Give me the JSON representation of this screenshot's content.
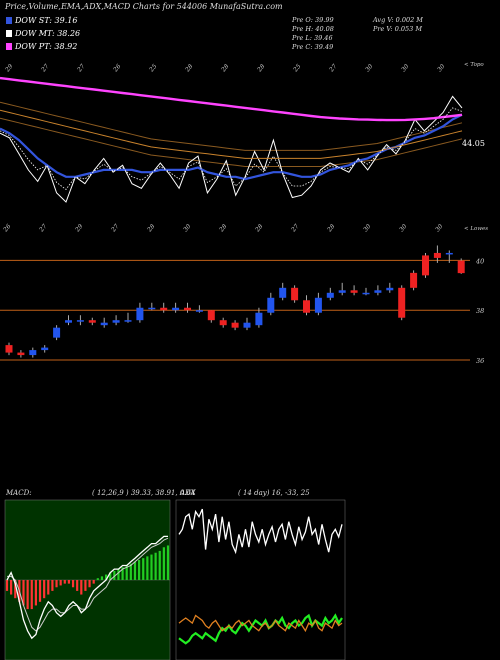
{
  "header": {
    "title": "Price,Volume,EMA,ADX,MACD Charts for 544006  MunafaSutra.com",
    "legend": [
      {
        "label": "DOW ST: 39.16",
        "color": "#3355dd"
      },
      {
        "label": "DOW MT: 38.26",
        "color": "#ffffff"
      },
      {
        "label": "DOW PT: 38.92",
        "color": "#ff44ff"
      }
    ],
    "info_left": [
      "Pre  O: 39.99",
      "Pre  H: 40.08",
      "Pre  L: 39.46",
      "Pre  C: 39.49"
    ],
    "info_right": [
      "Avg V: 0.002  M",
      "Pre  V: 0.053 M"
    ]
  },
  "upper": {
    "price_label": "44.05",
    "top_word": "< Topo",
    "bottom_word": "< Lowes",
    "top_day_labels": [
      "29",
      "27",
      "27",
      "26",
      "25",
      "28",
      "28",
      "28",
      "25",
      "27",
      "30",
      "30",
      "30"
    ],
    "bottom_day_labels": [
      "26",
      "27",
      "29",
      "27",
      "28",
      "30",
      "28",
      "28",
      "27",
      "28",
      "30",
      "30",
      "30"
    ]
  },
  "candle_panel": {
    "levels": [
      "40",
      "38",
      "36"
    ]
  },
  "macd_panel": {
    "label": "MACD:",
    "values": "( 12,26,9 ) 39.33,  38.91,  0.64"
  },
  "adx_panel": {
    "label": "ADX",
    "values": "( 14  day) 16,  -33,  25"
  },
  "chart_data": [
    {
      "type": "line",
      "title": "",
      "x": [
        1,
        2,
        3,
        4,
        5,
        6,
        7,
        8,
        9,
        10,
        11,
        12,
        13,
        14,
        15,
        16,
        17,
        18,
        19,
        20,
        21,
        22,
        23,
        24,
        25,
        26,
        27,
        28,
        29,
        30,
        31,
        32,
        33,
        34,
        35,
        36,
        37,
        38,
        39,
        40,
        41,
        42,
        43,
        44,
        45,
        46,
        47,
        48,
        49,
        50
      ],
      "series": [
        {
          "name": "",
          "color": "#ffffff",
          "values": [
            44.2,
            44.0,
            43.3,
            42.6,
            42.1,
            42.8,
            41.6,
            41.2,
            42.3,
            42.0,
            42.6,
            43.1,
            42.5,
            42.8,
            42.0,
            41.8,
            42.4,
            42.9,
            42.4,
            41.8,
            42.9,
            43.2,
            41.6,
            42.2,
            43.0,
            41.5,
            42.3,
            43.4,
            42.6,
            43.9,
            42.4,
            41.4,
            41.5,
            41.9,
            42.6,
            42.9,
            42.7,
            42.5,
            43.1,
            42.6,
            43.2,
            43.7,
            43.3,
            43.9,
            44.8,
            44.3,
            44.7,
            45.1,
            45.8,
            45.3
          ]
        },
        {
          "name": "",
          "color": "#3355dd",
          "values": [
            44.4,
            44.2,
            43.9,
            43.5,
            43.1,
            42.8,
            42.5,
            42.3,
            42.3,
            42.4,
            42.5,
            42.6,
            42.6,
            42.6,
            42.6,
            42.5,
            42.5,
            42.6,
            42.6,
            42.6,
            42.6,
            42.7,
            42.5,
            42.4,
            42.3,
            42.3,
            42.2,
            42.3,
            42.4,
            42.5,
            42.5,
            42.4,
            42.3,
            42.3,
            42.4,
            42.6,
            42.7,
            42.8,
            43.0,
            43.1,
            43.3,
            43.5,
            43.6,
            43.8,
            44.0,
            44.1,
            44.3,
            44.5,
            44.8,
            45.0
          ]
        },
        {
          "name": "",
          "color": "#ff44ff",
          "values": [
            46.6,
            46.55,
            46.5,
            46.45,
            46.4,
            46.35,
            46.3,
            46.25,
            46.2,
            46.15,
            46.1,
            46.05,
            46.0,
            45.95,
            45.9,
            45.85,
            45.8,
            45.75,
            45.7,
            45.65,
            45.6,
            45.55,
            45.5,
            45.45,
            45.4,
            45.35,
            45.3,
            45.25,
            45.2,
            45.15,
            45.1,
            45.05,
            45.0,
            44.95,
            44.9,
            44.87,
            44.84,
            44.82,
            44.8,
            44.79,
            44.78,
            44.77,
            44.77,
            44.78,
            44.8,
            44.82,
            44.85,
            44.9,
            44.95,
            45.0
          ]
        },
        {
          "name": "",
          "color": "#c8822c",
          "values": [
            45.2,
            45.1,
            45.0,
            44.9,
            44.8,
            44.7,
            44.6,
            44.5,
            44.4,
            44.3,
            44.2,
            44.1,
            44.0,
            43.9,
            43.8,
            43.7,
            43.6,
            43.55,
            43.5,
            43.45,
            43.4,
            43.35,
            43.3,
            43.25,
            43.2,
            43.15,
            43.1,
            43.1,
            43.1,
            43.1,
            43.1,
            43.1,
            43.1,
            43.1,
            43.1,
            43.15,
            43.2,
            43.25,
            43.3,
            43.35,
            43.4,
            43.5,
            43.6,
            43.7,
            43.8,
            43.9,
            44.0,
            44.1,
            44.2,
            44.3
          ]
        }
      ]
    },
    {
      "type": "bar",
      "title": "",
      "open": [
        36.6,
        36.3,
        36.2,
        36.4,
        36.9,
        37.5,
        37.6,
        37.6,
        37.4,
        37.5,
        37.6,
        37.6,
        38.1,
        38.1,
        38.0,
        38.1,
        38.0,
        38.0,
        37.6,
        37.5,
        37.3,
        37.4,
        37.9,
        38.5,
        38.9,
        38.4,
        37.9,
        38.5,
        38.7,
        38.8,
        38.7,
        38.7,
        38.8,
        38.9,
        39.5,
        40.2,
        40.3,
        40.3,
        39.99
      ],
      "close": [
        36.3,
        36.2,
        36.4,
        36.5,
        37.3,
        37.6,
        37.6,
        37.5,
        37.5,
        37.6,
        37.6,
        38.1,
        38.1,
        38.0,
        38.1,
        38.0,
        38.0,
        37.6,
        37.4,
        37.3,
        37.5,
        37.9,
        38.5,
        38.9,
        38.4,
        37.9,
        38.5,
        38.7,
        38.8,
        38.7,
        38.7,
        38.8,
        38.9,
        37.7,
        38.9,
        39.4,
        40.1,
        40.3,
        39.49
      ],
      "high": [
        36.7,
        36.4,
        36.5,
        36.6,
        37.4,
        37.8,
        37.8,
        37.7,
        37.7,
        37.8,
        37.9,
        38.3,
        38.3,
        38.3,
        38.3,
        38.3,
        38.2,
        38.0,
        37.7,
        37.6,
        37.7,
        38.1,
        38.7,
        39.1,
        39.0,
        38.6,
        38.7,
        38.9,
        39.1,
        39.0,
        38.9,
        39.0,
        39.1,
        39.0,
        39.6,
        40.3,
        40.6,
        40.4,
        40.08
      ],
      "low": [
        36.2,
        36.1,
        36.1,
        36.3,
        36.8,
        37.4,
        37.4,
        37.4,
        37.3,
        37.4,
        37.5,
        37.5,
        38.0,
        37.9,
        37.9,
        37.9,
        37.9,
        37.5,
        37.3,
        37.2,
        37.2,
        37.3,
        37.8,
        38.4,
        38.3,
        37.8,
        37.8,
        38.4,
        38.6,
        38.6,
        38.6,
        38.6,
        38.7,
        37.6,
        38.8,
        39.3,
        39.9,
        39.9,
        39.46
      ]
    },
    {
      "type": "line",
      "title": "",
      "series": [
        {
          "name": "",
          "color": "#ffffff",
          "values": [
            0.0,
            0.2,
            -0.1,
            -0.6,
            -1.1,
            -1.4,
            -1.6,
            -1.5,
            -1.1,
            -0.8,
            -0.6,
            -0.7,
            -0.9,
            -1.0,
            -0.9,
            -0.7,
            -0.6,
            -0.7,
            -0.9,
            -0.8,
            -0.5,
            -0.3,
            -0.2,
            -0.1,
            0.0,
            0.2,
            0.3,
            0.3,
            0.4,
            0.4,
            0.5,
            0.6,
            0.7,
            0.8,
            0.9,
            1.0,
            1.0,
            1.1,
            1.2,
            1.2
          ]
        },
        {
          "name": "",
          "color": "#cccccc",
          "values": [
            0.1,
            0.1,
            0.0,
            -0.3,
            -0.7,
            -1.0,
            -1.3,
            -1.4,
            -1.3,
            -1.1,
            -0.9,
            -0.8,
            -0.8,
            -0.9,
            -0.9,
            -0.8,
            -0.7,
            -0.7,
            -0.8,
            -0.8,
            -0.7,
            -0.5,
            -0.4,
            -0.3,
            -0.2,
            0.0,
            0.1,
            0.2,
            0.3,
            0.35,
            0.4,
            0.5,
            0.6,
            0.7,
            0.8,
            0.9,
            0.95,
            1.0,
            1.1,
            1.15
          ]
        },
        {
          "name": "",
          "color": "#ff3333",
          "values": [
            -0.3,
            -0.4,
            -0.5,
            -0.6,
            -0.7,
            -0.8,
            -0.8,
            -0.7,
            -0.6,
            -0.5,
            -0.4,
            -0.3,
            -0.2,
            -0.15,
            -0.1,
            -0.1,
            -0.2,
            -0.3,
            -0.4,
            -0.3,
            -0.2,
            -0.1,
            0.05,
            0.1,
            0.15,
            0.2,
            0.25,
            0.3,
            0.35,
            0.4,
            0.45,
            0.5,
            0.55,
            0.6,
            0.65,
            0.7,
            0.75,
            0.8,
            0.9,
            0.95
          ]
        }
      ]
    },
    {
      "type": "line",
      "title": "",
      "ylim": [
        0,
        60
      ],
      "series": [
        {
          "name": "",
          "color": "#ffffff",
          "values": [
            48,
            50,
            55,
            56,
            50,
            57,
            55,
            58,
            42,
            54,
            50,
            56,
            45,
            55,
            46,
            53,
            44,
            41,
            48,
            43,
            50,
            43,
            53,
            48,
            45,
            50,
            44,
            48,
            51,
            45,
            50,
            52,
            46,
            53,
            48,
            44,
            51,
            46,
            49,
            55,
            48,
            50,
            44,
            52,
            46,
            41,
            48,
            50,
            47,
            52
          ]
        },
        {
          "name": "",
          "color": "#22ee22",
          "values": [
            7,
            6,
            5,
            6,
            8,
            9,
            8,
            7,
            9,
            8,
            7,
            6,
            9,
            11,
            10,
            12,
            10,
            9,
            11,
            13,
            12,
            10,
            12,
            14,
            13,
            12,
            14,
            11,
            12,
            14,
            13,
            15,
            12,
            11,
            13,
            14,
            12,
            13,
            15,
            16,
            12,
            14,
            13,
            12,
            15,
            13,
            14,
            16,
            13,
            15
          ]
        },
        {
          "name": "",
          "color": "#e08020",
          "values": [
            13,
            14,
            15,
            14,
            13,
            16,
            15,
            14,
            12,
            11,
            13,
            14,
            12,
            10,
            11,
            12,
            11,
            13,
            14,
            12,
            13,
            14,
            12,
            11,
            10,
            12,
            13,
            11,
            12,
            14,
            12,
            11,
            10,
            13,
            12,
            11,
            14,
            12,
            10,
            13,
            12,
            14,
            11,
            10,
            13,
            12,
            11,
            14,
            12,
            13
          ]
        }
      ]
    }
  ]
}
